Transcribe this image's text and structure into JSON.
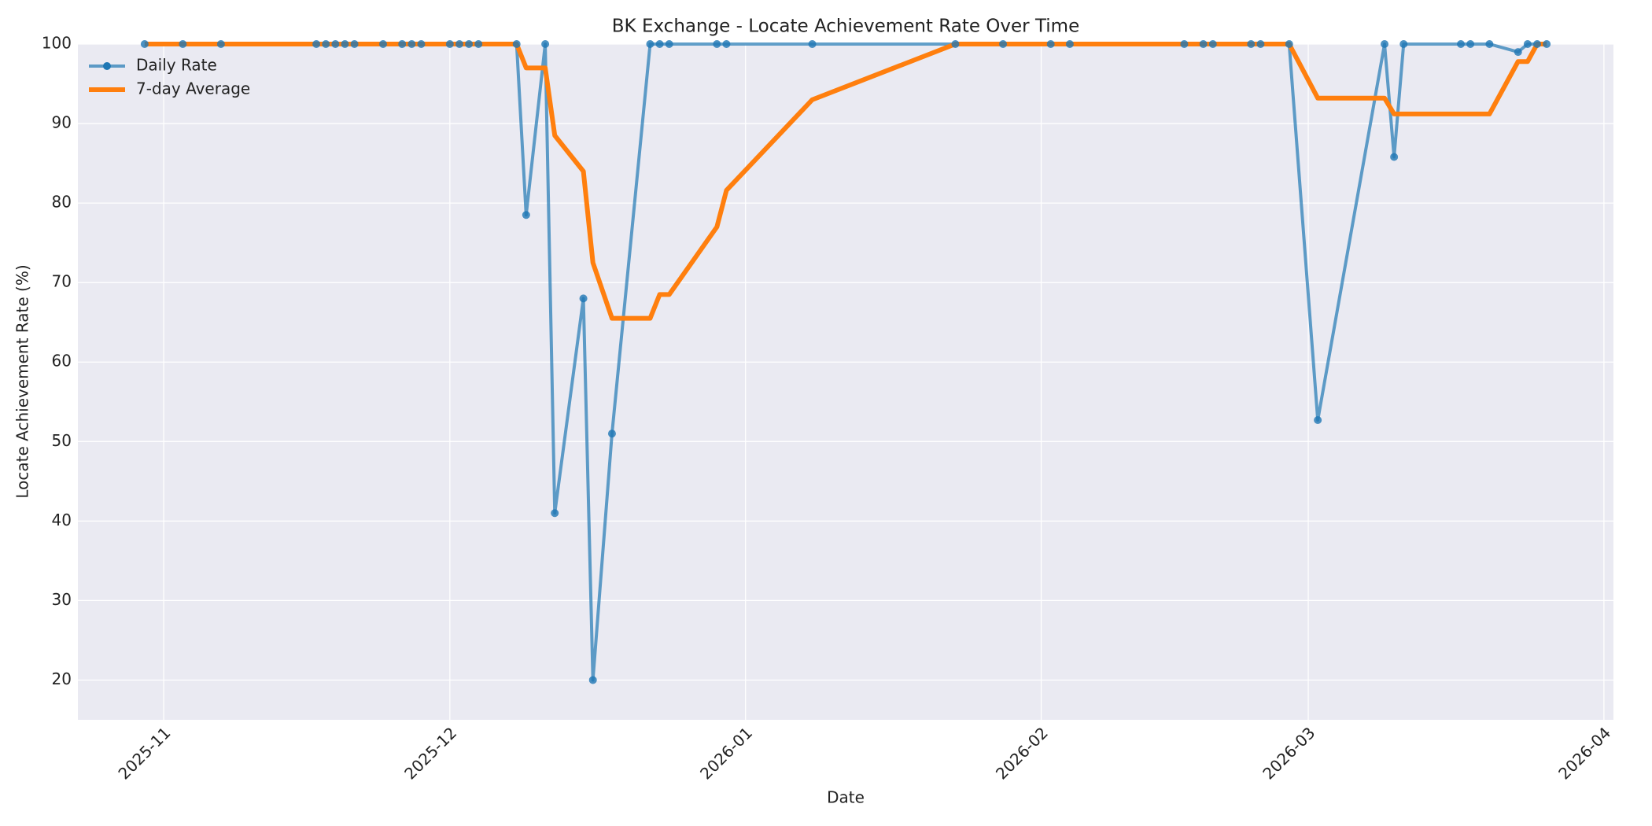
{
  "chart_data": {
    "type": "line",
    "title": "BK Exchange - Locate Achievement Rate Over Time",
    "xlabel": "Date",
    "ylabel": "Locate Achievement Rate (%)",
    "x": [
      "2025-10-30",
      "2025-11-03",
      "2025-11-07",
      "2025-11-17",
      "2025-11-18",
      "2025-11-19",
      "2025-11-20",
      "2025-11-21",
      "2025-11-24",
      "2025-11-26",
      "2025-11-27",
      "2025-11-28",
      "2025-12-01",
      "2025-12-02",
      "2025-12-03",
      "2025-12-04",
      "2025-12-08",
      "2025-12-09",
      "2025-12-11",
      "2025-12-12",
      "2025-12-15",
      "2025-12-16",
      "2025-12-18",
      "2025-12-22",
      "2025-12-23",
      "2025-12-24",
      "2025-12-29",
      "2025-12-30",
      "2026-01-08",
      "2026-01-23",
      "2026-01-28",
      "2026-02-02",
      "2026-02-04",
      "2026-02-16",
      "2026-02-18",
      "2026-02-19",
      "2026-02-23",
      "2026-02-24",
      "2026-02-27",
      "2026-03-02",
      "2026-03-09",
      "2026-03-10",
      "2026-03-11",
      "2026-03-17",
      "2026-03-18",
      "2026-03-20",
      "2026-03-23",
      "2026-03-24",
      "2026-03-25",
      "2026-03-26"
    ],
    "series": [
      {
        "name": "Daily Rate",
        "color": "#1f77b4",
        "marker": true,
        "values": [
          100,
          100,
          100,
          100,
          100,
          100,
          100,
          100,
          100,
          100,
          100,
          100,
          100,
          100,
          100,
          100,
          100,
          78.5,
          100,
          41,
          68,
          20,
          51,
          100,
          100,
          100,
          100,
          100,
          100,
          100,
          100,
          100,
          100,
          100,
          100,
          100,
          100,
          100,
          100,
          52.7,
          100,
          85.8,
          100,
          100,
          100,
          100,
          99,
          100,
          100,
          100
        ]
      },
      {
        "name": "7-day Average",
        "color": "#ff7f0e",
        "marker": false,
        "values": [
          100,
          100,
          100,
          100,
          100,
          100,
          100,
          100,
          100,
          100,
          100,
          100,
          100,
          100,
          100,
          100,
          100,
          97,
          97,
          88.5,
          84,
          72.5,
          65.5,
          65.5,
          68.5,
          68.5,
          77,
          81.6,
          93,
          100,
          100,
          100,
          100,
          100,
          100,
          100,
          100,
          100,
          100,
          93.2,
          93.2,
          91.2,
          91.2,
          91.2,
          91.2,
          91.2,
          97.8,
          97.8,
          100,
          100
        ]
      }
    ],
    "xlim": [
      "2025-10-23",
      "2026-04-02"
    ],
    "xticks": [
      "2025-11",
      "2025-12",
      "2026-01",
      "2026-02",
      "2026-03",
      "2026-04"
    ],
    "ylim": [
      15,
      100
    ],
    "yticks": [
      20,
      30,
      40,
      50,
      60,
      70,
      80,
      90,
      100
    ],
    "grid": true,
    "legend": "upper left"
  }
}
